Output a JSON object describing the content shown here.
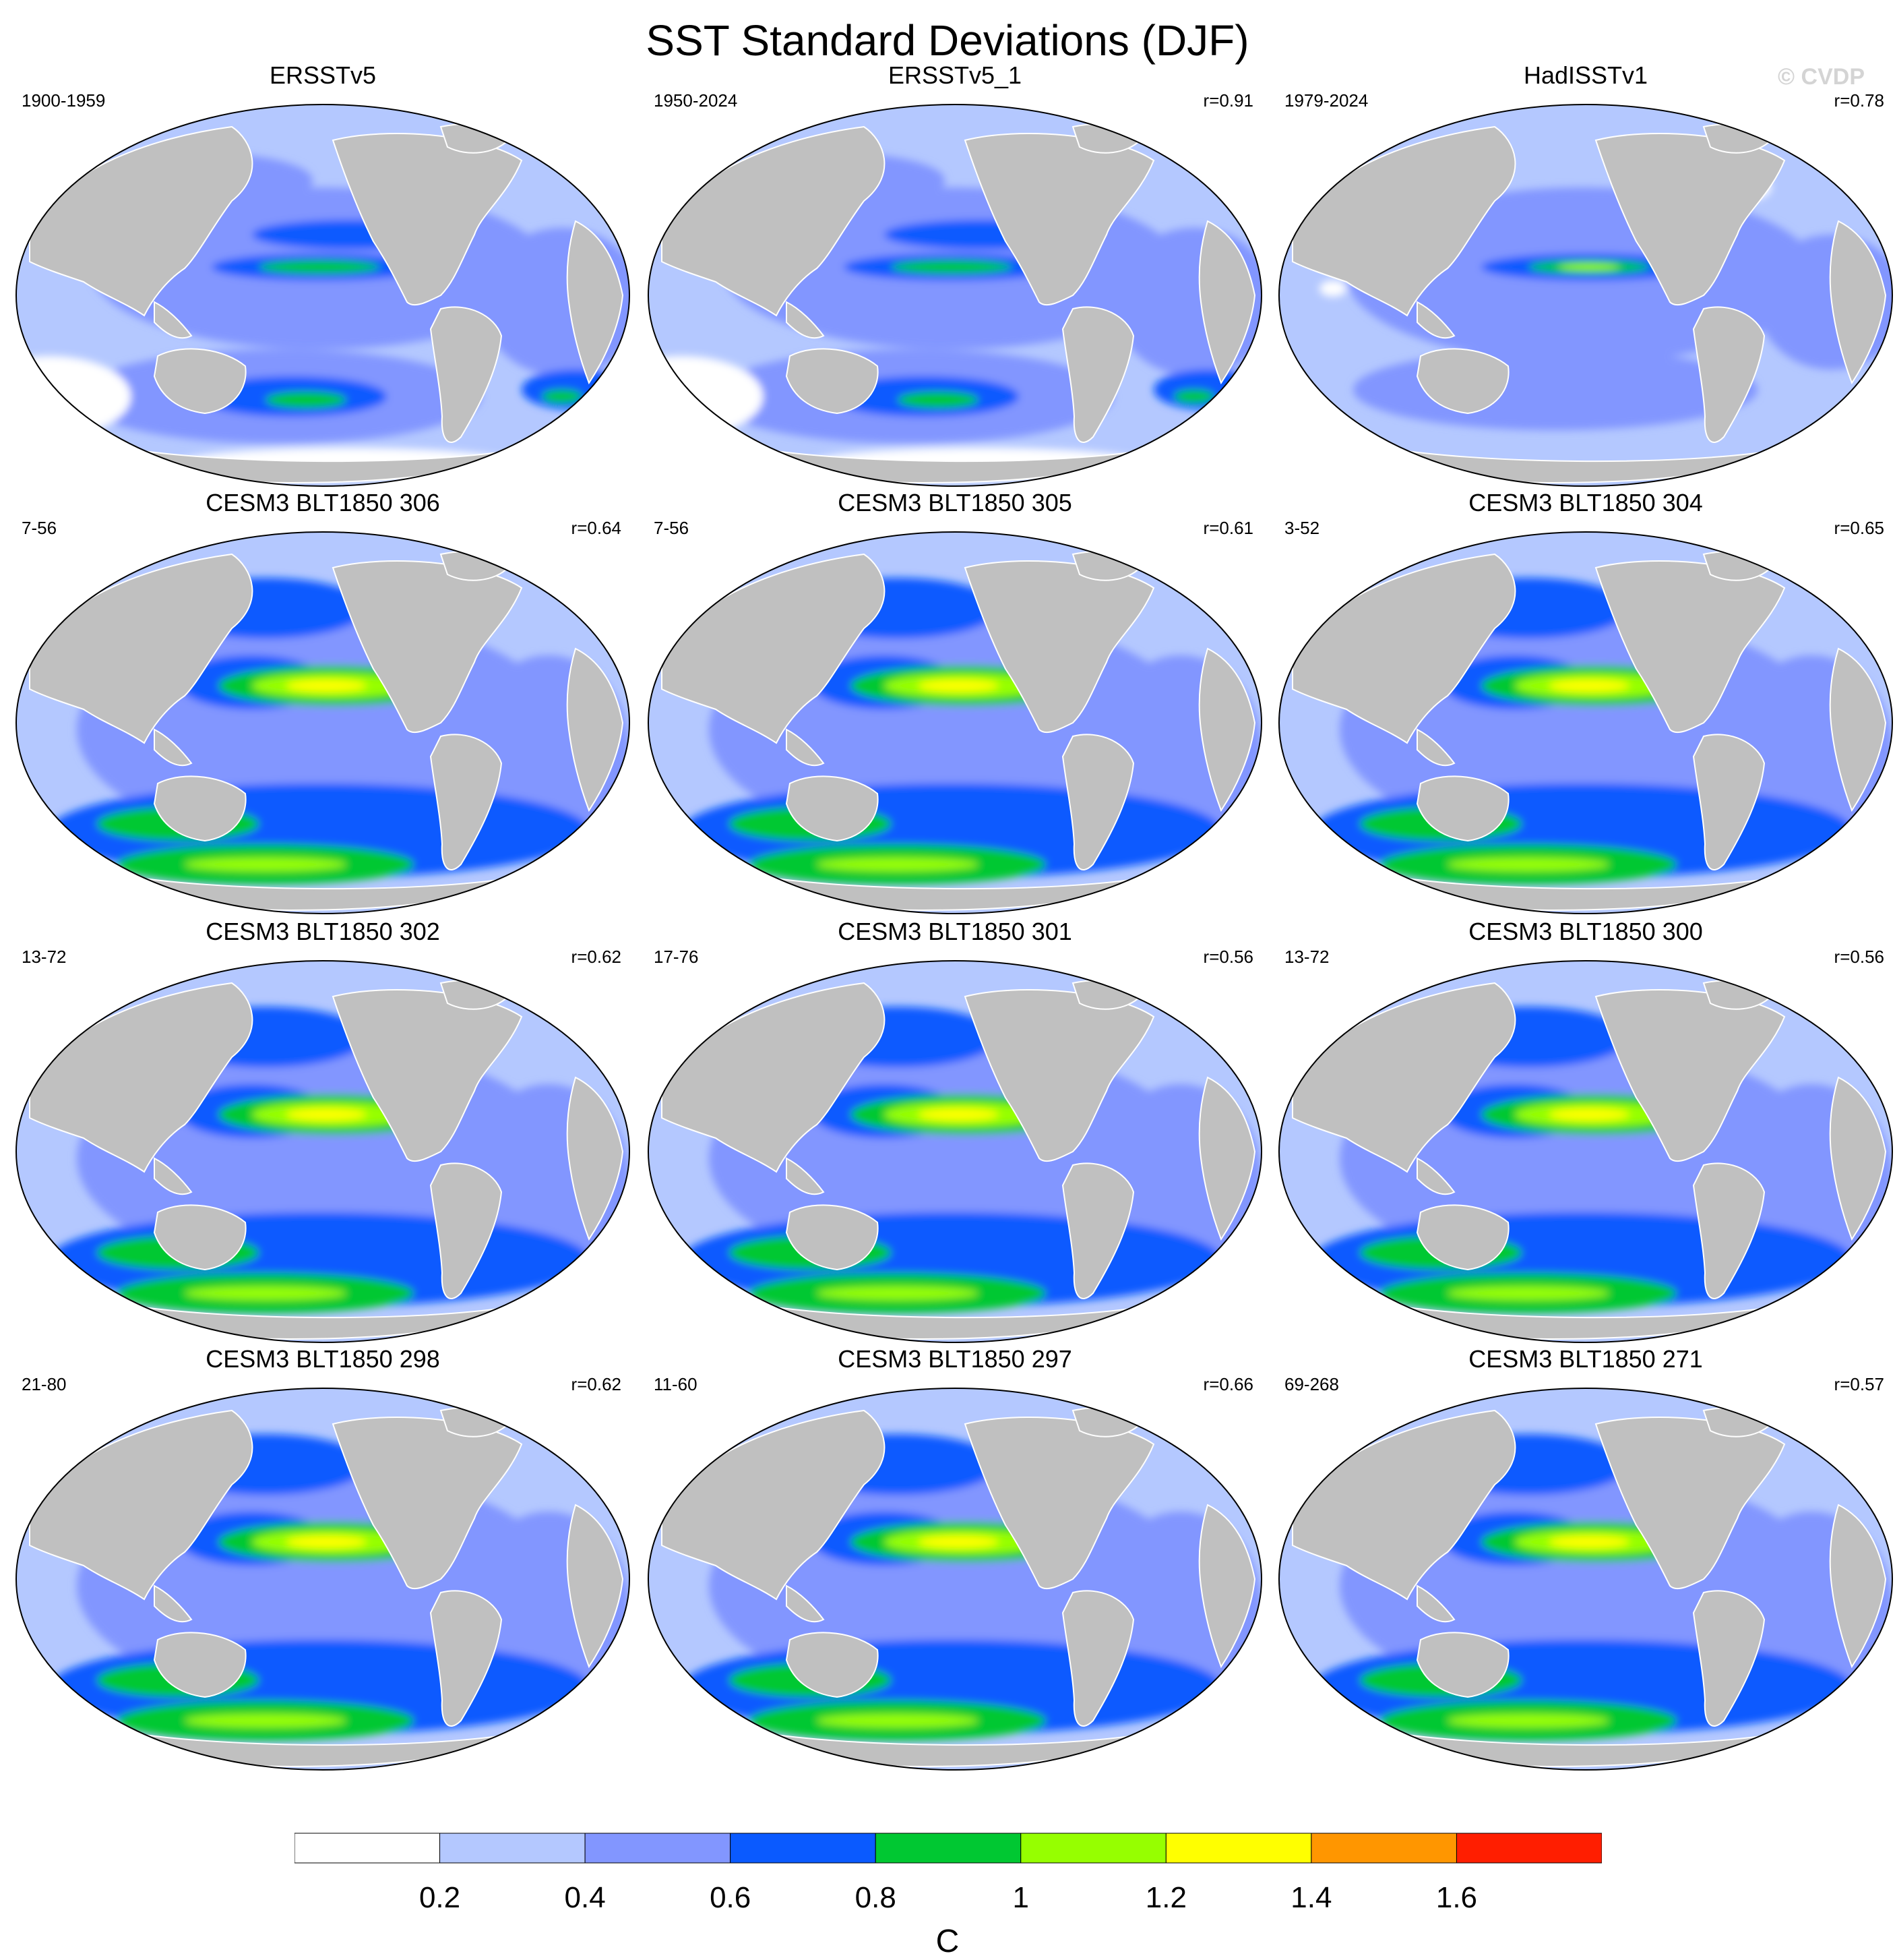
{
  "title": "SST Standard Deviations (DJF)",
  "watermark": "© CVDP",
  "panels": [
    {
      "title": "ERSSTv5",
      "years": "1900-1959",
      "corr": "",
      "style": "obs1"
    },
    {
      "title": "ERSSTv5_1",
      "years": "1950-2024",
      "corr": "r=0.91",
      "style": "obs1"
    },
    {
      "title": "HadISSTv1",
      "years": "1979-2024",
      "corr": "r=0.78",
      "style": "obs2"
    },
    {
      "title": "CESM3 BLT1850 306",
      "years": "7-56",
      "corr": "r=0.64",
      "style": "model"
    },
    {
      "title": "CESM3 BLT1850 305",
      "years": "7-56",
      "corr": "r=0.61",
      "style": "model"
    },
    {
      "title": "CESM3 BLT1850 304",
      "years": "3-52",
      "corr": "r=0.65",
      "style": "model"
    },
    {
      "title": "CESM3 BLT1850 302",
      "years": "13-72",
      "corr": "r=0.62",
      "style": "model"
    },
    {
      "title": "CESM3 BLT1850 301",
      "years": "17-76",
      "corr": "r=0.56",
      "style": "model"
    },
    {
      "title": "CESM3 BLT1850 300",
      "years": "13-72",
      "corr": "r=0.56",
      "style": "model"
    },
    {
      "title": "CESM3 BLT1850 298",
      "years": "21-80",
      "corr": "r=0.62",
      "style": "model"
    },
    {
      "title": "CESM3 BLT1850 297",
      "years": "11-60",
      "corr": "r=0.66",
      "style": "model"
    },
    {
      "title": "CESM3 BLT1850 271",
      "years": "69-268",
      "corr": "r=0.57",
      "style": "model"
    }
  ],
  "colorbar": {
    "unit": "C",
    "labels": [
      "0.2",
      "0.4",
      "0.6",
      "0.8",
      "1",
      "1.2",
      "1.4",
      "1.6"
    ],
    "colors": [
      "#ffffff",
      "#b4c8ff",
      "#8296ff",
      "#0a5aff",
      "#00c832",
      "#96ff00",
      "#ffff00",
      "#ff9600",
      "#ff1e00"
    ]
  },
  "colors": {
    "land": "#c0c0c0",
    "ocean_low": "#b4c8ff"
  }
}
